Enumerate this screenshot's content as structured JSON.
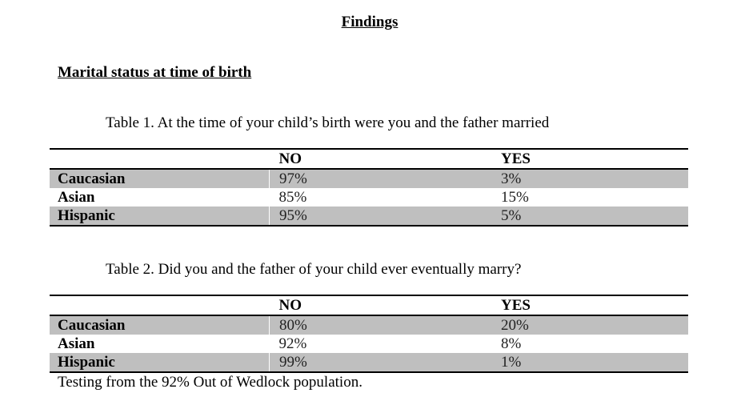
{
  "document": {
    "title": "Findings",
    "section_heading": "Marital status at time of birth"
  },
  "tables": [
    {
      "caption": "Table 1. At the time of your child’s birth were you and the father married",
      "headers": [
        "",
        "NO",
        "YES"
      ],
      "rows": [
        {
          "group": "Caucasian",
          "no": "97%",
          "yes": "3%"
        },
        {
          "group": "Asian",
          "no": "85%",
          "yes": "15%"
        },
        {
          "group": "Hispanic",
          "no": "95%",
          "yes": "5%"
        }
      ]
    },
    {
      "caption": "Table 2. Did you and the father of your child ever eventually marry?",
      "headers": [
        "",
        "NO",
        "YES"
      ],
      "rows": [
        {
          "group": "Caucasian",
          "no": "80%",
          "yes": "20%"
        },
        {
          "group": "Asian",
          "no": "92%",
          "yes": "8%"
        },
        {
          "group": "Hispanic",
          "no": "99%",
          "yes": "1%"
        }
      ]
    }
  ],
  "footnote": "Testing from the 92% Out of Wedlock population.",
  "colors": {
    "row_shading": "#bfbfbf",
    "rule": "#000000"
  }
}
